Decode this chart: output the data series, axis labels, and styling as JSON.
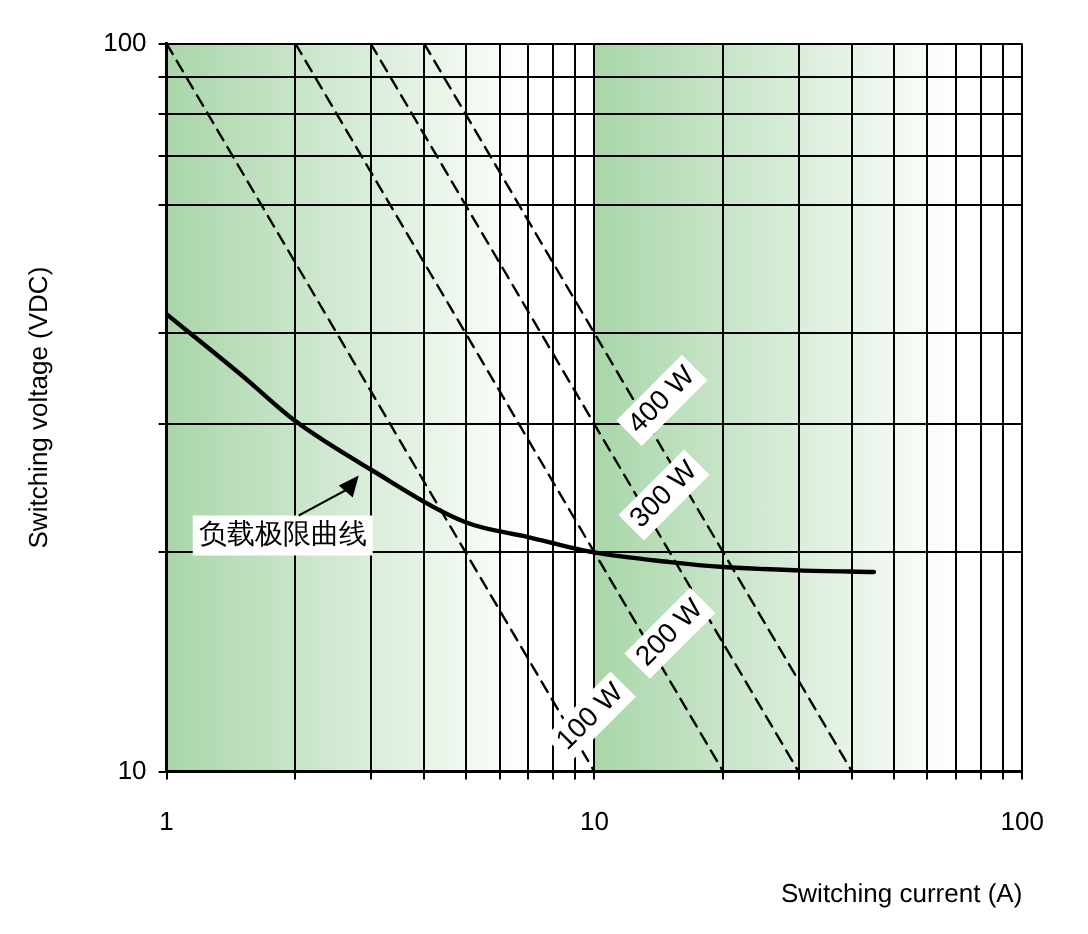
{
  "chart_data": {
    "type": "line",
    "xlabel": "Switching current (A)",
    "ylabel": "Switching voltage (VDC)",
    "log": "xy",
    "grid": true,
    "legend": false,
    "xlim": [
      1,
      100
    ],
    "ylim": [
      10,
      100
    ],
    "xticks": [
      1,
      {
        "value": 2,
        "label": null
      },
      {
        "value": 3,
        "label": null
      },
      {
        "value": 4,
        "label": null
      },
      {
        "value": 5,
        "label": null
      },
      {
        "value": 6,
        "label": null
      },
      {
        "value": 7,
        "label": null
      },
      {
        "value": 8,
        "label": null
      },
      {
        "value": 9,
        "label": null
      },
      10,
      {
        "value": 20,
        "label": null
      },
      {
        "value": 30,
        "label": null
      },
      {
        "value": 40,
        "label": null
      },
      {
        "value": 50,
        "label": null
      },
      {
        "value": 60,
        "label": null
      },
      {
        "value": 70,
        "label": null
      },
      {
        "value": 80,
        "label": null
      },
      {
        "value": 90,
        "label": null
      },
      100
    ],
    "yticks": [
      10,
      {
        "value": 20,
        "label": null
      },
      {
        "value": 30,
        "label": null
      },
      {
        "value": 40,
        "label": null
      },
      {
        "value": 60,
        "label": null
      },
      {
        "value": 70,
        "label": null
      },
      {
        "value": 80,
        "label": null
      },
      {
        "value": 90,
        "label": null
      },
      100
    ],
    "bands": [
      {
        "axis": "x",
        "from": 1,
        "to": 7,
        "color": "#a9d6a9"
      },
      {
        "axis": "x",
        "from": 10,
        "to": 70,
        "color": "#a9d6a9"
      }
    ],
    "annotations": [
      {
        "text": "负载极限曲线",
        "x": 3,
        "y": 26
      }
    ],
    "series": [
      {
        "color": "#000000",
        "line_style": "solid",
        "marker": "none",
        "x": [
          1,
          1.5,
          2,
          3,
          5,
          7,
          10,
          15,
          20,
          30,
          45
        ],
        "values": [
          42.5,
          35,
          30.3,
          26,
          22,
          21,
          20,
          19.4,
          19.1,
          18.9,
          18.8
        ]
      },
      {
        "name": "100 W",
        "color": "#000000",
        "line_style": "dashed",
        "marker": "none",
        "x": [
          1,
          10
        ],
        "values": [
          100,
          10
        ]
      },
      {
        "name": "200 W",
        "color": "#000000",
        "line_style": "dashed",
        "marker": "none",
        "x": [
          2,
          20
        ],
        "values": [
          100,
          10
        ]
      },
      {
        "name": "300 W",
        "color": "#000000",
        "line_style": "dashed",
        "marker": "none",
        "x": [
          3,
          30
        ],
        "values": [
          100,
          10
        ]
      },
      {
        "name": "400 W",
        "color": "#000000",
        "line_style": "dashed",
        "marker": "none",
        "x": [
          4,
          40
        ],
        "values": [
          100,
          10
        ]
      }
    ]
  }
}
